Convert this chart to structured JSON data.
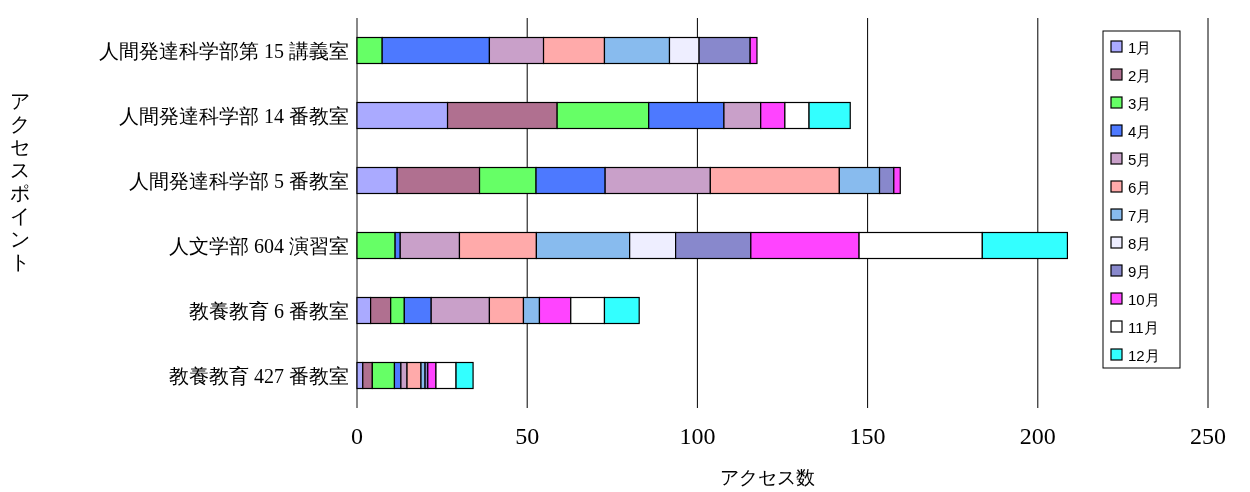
{
  "chart_data": {
    "type": "bar",
    "orientation": "horizontal",
    "stacked": true,
    "xlabel": "アクセス数",
    "ylabel": "アクセスポイント",
    "categories": [
      "人間発達科学部第 15 講義室",
      "人間発達科学部 14 番教室",
      "人間発達科学部 5 番教室",
      "人文学部 604 演習室",
      "教養教育 6 番教室",
      "教養教育 427 番教室"
    ],
    "xlim": [
      0,
      250
    ],
    "xticks": [
      0,
      50,
      100,
      150,
      200,
      250
    ],
    "grid": "x",
    "legend": "right",
    "series": [
      {
        "name": "1月",
        "color": "#aaaaff",
        "values": [
          0,
          26.6,
          11.8,
          0,
          4.0,
          1.7
        ]
      },
      {
        "name": "2月",
        "color": "#b07090",
        "values": [
          0,
          32.2,
          24.2,
          0,
          5.9,
          2.8
        ]
      },
      {
        "name": "3月",
        "color": "#66ff66",
        "values": [
          7.4,
          26.9,
          16.6,
          11.2,
          4.0,
          6.5
        ]
      },
      {
        "name": "4月",
        "color": "#4d79ff",
        "values": [
          31.5,
          22.1,
          20.3,
          1.5,
          7.9,
          1.9
        ]
      },
      {
        "name": "5月",
        "color": "#c9a0c9",
        "values": [
          15.9,
          10.8,
          30.9,
          17.4,
          17.1,
          1.8
        ]
      },
      {
        "name": "6月",
        "color": "#ffaaaa",
        "values": [
          17.9,
          0,
          37.9,
          22.6,
          10.0,
          4.1
        ]
      },
      {
        "name": "7月",
        "color": "#88bbee",
        "values": [
          19.1,
          0,
          11.8,
          27.4,
          4.7,
          1.2
        ]
      },
      {
        "name": "8月",
        "color": "#eeeeff",
        "values": [
          8.7,
          0,
          0,
          13.5,
          0,
          0
        ]
      },
      {
        "name": "9月",
        "color": "#8888cc",
        "values": [
          15.0,
          0,
          4.2,
          22.1,
          0,
          0.8
        ]
      },
      {
        "name": "10月",
        "color": "#ff44ff",
        "values": [
          2.0,
          7.1,
          1.9,
          31.8,
          9.2,
          2.4
        ]
      },
      {
        "name": "11月",
        "color": "#ffffff",
        "values": [
          0,
          7.1,
          0,
          36.2,
          9.9,
          5.9
        ]
      },
      {
        "name": "12月",
        "color": "#33ffff",
        "values": [
          0,
          12.1,
          0,
          25.0,
          10.2,
          5.0
        ]
      }
    ]
  }
}
